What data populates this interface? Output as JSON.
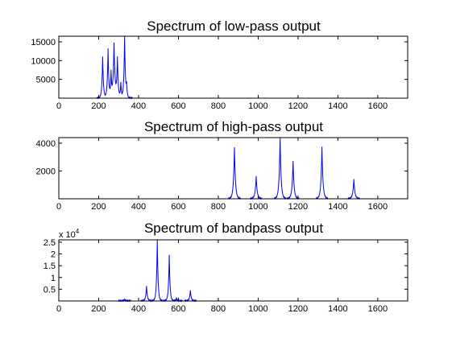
{
  "chart_data": [
    {
      "type": "line",
      "title": "Spectrum of low-pass output",
      "xlim": [
        0,
        1750
      ],
      "ylim": [
        0,
        16500
      ],
      "x_ticks": [
        0,
        200,
        400,
        600,
        800,
        1000,
        1200,
        1400,
        1600
      ],
      "x_tick_labels": [
        "0",
        "200",
        "400",
        "600",
        "800",
        "1000",
        "1200",
        "1400",
        "1600"
      ],
      "y_ticks": [
        5000,
        10000,
        15000
      ],
      "y_tick_labels": [
        "5000",
        "10000",
        "15000"
      ],
      "y_exponent_label": "",
      "grid": false,
      "color": "#0000ff",
      "peaks": [
        {
          "x": 220,
          "y": 11000,
          "width": 4
        },
        {
          "x": 247,
          "y": 13000,
          "width": 4
        },
        {
          "x": 262,
          "y": 6500,
          "width": 3
        },
        {
          "x": 277,
          "y": 14500,
          "width": 5
        },
        {
          "x": 294,
          "y": 10500,
          "width": 4
        },
        {
          "x": 311,
          "y": 4000,
          "width": 3
        },
        {
          "x": 330,
          "y": 16400,
          "width": 4
        },
        {
          "x": 340,
          "y": 3000,
          "width": 3
        }
      ]
    },
    {
      "type": "line",
      "title": "Spectrum of high-pass output",
      "xlim": [
        0,
        1750
      ],
      "ylim": [
        0,
        4400
      ],
      "x_ticks": [
        0,
        200,
        400,
        600,
        800,
        1000,
        1200,
        1400,
        1600
      ],
      "x_tick_labels": [
        "0",
        "200",
        "400",
        "600",
        "800",
        "1000",
        "1200",
        "1400",
        "1600"
      ],
      "y_ticks": [
        2000,
        4000
      ],
      "y_tick_labels": [
        "2000",
        "4000"
      ],
      "y_exponent_label": "",
      "grid": false,
      "color": "#0000ff",
      "peaks": [
        {
          "x": 881,
          "y": 3700,
          "width": 5
        },
        {
          "x": 990,
          "y": 1600,
          "width": 5
        },
        {
          "x": 1110,
          "y": 4400,
          "width": 5
        },
        {
          "x": 1175,
          "y": 2700,
          "width": 5
        },
        {
          "x": 1320,
          "y": 3700,
          "width": 5
        },
        {
          "x": 1480,
          "y": 1400,
          "width": 5
        }
      ]
    },
    {
      "type": "line",
      "title": "Spectrum of bandpass output",
      "xlim": [
        0,
        1750
      ],
      "ylim": [
        0,
        26000
      ],
      "x_ticks": [
        0,
        200,
        400,
        600,
        800,
        1000,
        1200,
        1400,
        1600
      ],
      "x_tick_labels": [
        "0",
        "200",
        "400",
        "600",
        "800",
        "1000",
        "1200",
        "1400",
        "1600"
      ],
      "y_ticks": [
        5000,
        10000,
        15000,
        20000,
        25000
      ],
      "y_tick_labels": [
        "0.5",
        "1",
        "1.5",
        "2",
        "2.5"
      ],
      "y_exponent_label": "x 10",
      "y_exponent_power": "4",
      "grid": false,
      "color": "#0000ff",
      "peaks": [
        {
          "x": 330,
          "y": 800,
          "width": 3
        },
        {
          "x": 440,
          "y": 6200,
          "width": 4
        },
        {
          "x": 494,
          "y": 26000,
          "width": 4
        },
        {
          "x": 554,
          "y": 19500,
          "width": 4
        },
        {
          "x": 590,
          "y": 1200,
          "width": 3
        },
        {
          "x": 660,
          "y": 4500,
          "width": 4
        }
      ]
    }
  ]
}
